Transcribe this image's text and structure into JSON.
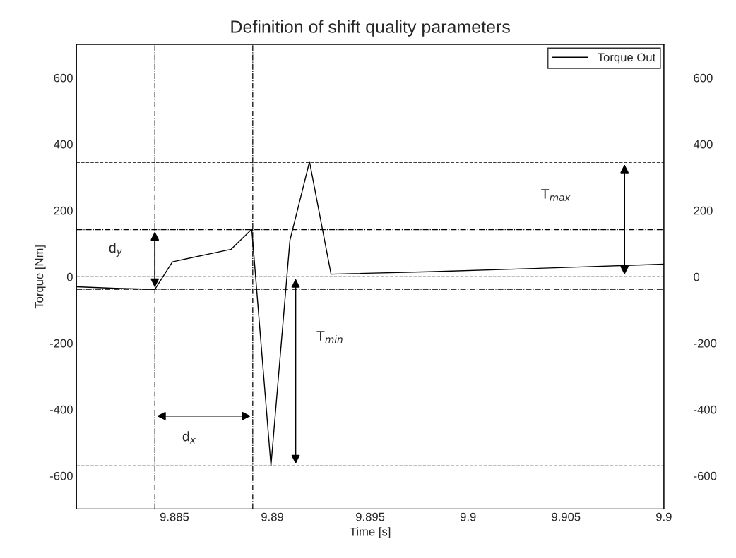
{
  "chart_data": {
    "type": "line",
    "title": "Definition of shift quality parameters",
    "xlabel": "Time [s]",
    "ylabel": "Torque [Nm]",
    "x": [
      9.88,
      9.882,
      9.884,
      9.8849,
      9.8879,
      9.88895,
      9.88993,
      9.8909,
      9.8919,
      9.893,
      9.898,
      9.905,
      9.91
    ],
    "series": [
      {
        "name": "Torque Out",
        "color": "#000000",
        "values": [
          -30,
          -35,
          -38,
          45,
          83,
          143,
          -570,
          110,
          347,
          8,
          15,
          28,
          38
        ]
      }
    ],
    "xlim": [
      9.88,
      9.91
    ],
    "xticks": [
      9.885,
      {
        "value": 9.89,
        "label": "9.89"
      },
      9.895,
      {
        "value": 9.9,
        "label": "9.9"
      },
      9.905,
      {
        "value": 9.91,
        "label": "9.9"
      }
    ],
    "ylim": [
      -700,
      700
    ],
    "yticks": [
      -600,
      -400,
      -200,
      0,
      200,
      400,
      600
    ],
    "y2lim": [
      -700,
      700
    ],
    "y2ticks": [
      -600,
      -400,
      -200,
      0,
      200,
      400,
      600
    ],
    "ref_lines": [
      {
        "axis": "y",
        "value": 345,
        "label": null,
        "line_style": "dashed"
      },
      {
        "axis": "y",
        "value": 142,
        "label": null,
        "line_style": "dashdot"
      },
      {
        "axis": "y",
        "value": 0,
        "label": null,
        "line_style": "dashed"
      },
      {
        "axis": "y",
        "value": -38,
        "label": null,
        "line_style": "dashdot"
      },
      {
        "axis": "y",
        "value": -570,
        "label": null,
        "line_style": "dashed"
      },
      {
        "axis": "x",
        "value": 9.884,
        "label": null,
        "line_style": "dashdot"
      },
      {
        "axis": "x",
        "value": 9.889,
        "label": null,
        "line_style": "dashdot"
      }
    ],
    "annotations": [
      "d$_{y}$",
      "d$_{x}$",
      "T$_{min}$",
      "T$_{max}$"
    ],
    "legend": "top right",
    "grid": false,
    "line_style": "solid",
    "marker": "none"
  }
}
